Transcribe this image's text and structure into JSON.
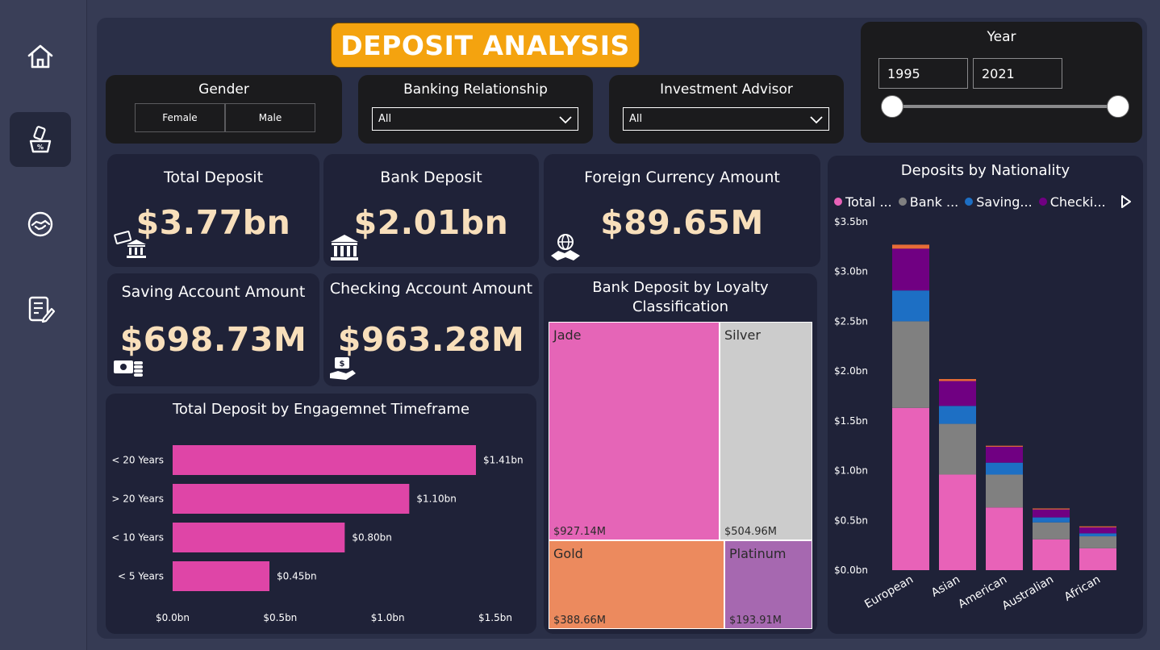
{
  "title": "DEPOSIT ANALYSIS",
  "sidebar": {
    "items": [
      {
        "name": "home",
        "icon": "home-icon"
      },
      {
        "name": "deposit",
        "icon": "deposit-icon",
        "active": true
      },
      {
        "name": "loan",
        "icon": "handshake-icon"
      },
      {
        "name": "report",
        "icon": "report-edit-icon"
      }
    ]
  },
  "slicers": {
    "gender": {
      "title": "Gender",
      "options": [
        "Female",
        "Male"
      ]
    },
    "banking_relationship": {
      "title": "Banking Relationship",
      "selected": "All"
    },
    "investment_advisor": {
      "title": "Investment Advisor",
      "selected": "All"
    },
    "year": {
      "title": "Year",
      "start": "1995",
      "end": "2021"
    }
  },
  "cards": {
    "total_deposit": {
      "title": "Total Deposit",
      "value": "$3.77bn"
    },
    "bank_deposit": {
      "title": "Bank Deposit",
      "value": "$2.01bn"
    },
    "foreign_currency": {
      "title": "Foreign Currency Amount",
      "value": "$89.65M"
    },
    "saving_account": {
      "title": "Saving Account Amount",
      "value": "$698.73M"
    },
    "checking_account": {
      "title": "Checking Account Amount",
      "value": "$963.28M"
    }
  },
  "colors": {
    "accent": "#f4a30f",
    "value_text": "#f8dfbb",
    "bar_pink": "#df45a7",
    "total": "#e862b8",
    "bank": "#808080",
    "saving": "#1d6fc4",
    "checking": "#700082",
    "foreign": "#e66c37",
    "jade": "#e565b7",
    "silver": "#cccccc",
    "gold": "#ec8a5e",
    "platinum": "#a668b0"
  },
  "chart_data": [
    {
      "id": "engagement",
      "type": "bar",
      "orientation": "horizontal",
      "title": "Total Deposit by Engagemnet Timeframe",
      "categories": [
        "< 20 Years",
        "> 20 Years",
        "< 10 Years",
        "< 5 Years"
      ],
      "values": [
        1.41,
        1.1,
        0.8,
        0.45
      ],
      "value_labels": [
        "$1.41bn",
        "$1.10bn",
        "$0.80bn",
        "$0.45bn"
      ],
      "xlim": [
        0,
        1.5
      ],
      "x_ticks": [
        0,
        0.5,
        1.0,
        1.5
      ],
      "x_tick_labels": [
        "$0.0bn",
        "$0.5bn",
        "$1.0bn",
        "$1.5bn"
      ]
    },
    {
      "id": "loyalty",
      "type": "treemap",
      "title": "Bank Deposit by Loyalty Classification",
      "items": [
        {
          "label": "Jade",
          "value": 927.14,
          "value_label": "$927.14M"
        },
        {
          "label": "Silver",
          "value": 504.96,
          "value_label": "$504.96M"
        },
        {
          "label": "Gold",
          "value": 388.66,
          "value_label": "$388.66M"
        },
        {
          "label": "Platinum",
          "value": 193.91,
          "value_label": "$193.91M"
        }
      ]
    },
    {
      "id": "nationality",
      "type": "bar",
      "stacked": true,
      "title": "Deposits by Nationality",
      "legend": [
        "Total ...",
        "Bank ...",
        "Saving...",
        "Checki..."
      ],
      "legend_position": "top-left",
      "categories": [
        "European",
        "Asian",
        "American",
        "Australian",
        "African"
      ],
      "series": [
        {
          "name": "Total Deposit",
          "values": [
            1.63,
            0.96,
            0.63,
            0.31,
            0.22
          ]
        },
        {
          "name": "Bank Deposit",
          "values": [
            0.87,
            0.51,
            0.33,
            0.17,
            0.12
          ]
        },
        {
          "name": "Saving Account",
          "values": [
            0.31,
            0.18,
            0.12,
            0.05,
            0.03
          ]
        },
        {
          "name": "Checking Account",
          "values": [
            0.42,
            0.25,
            0.16,
            0.08,
            0.06
          ]
        },
        {
          "name": "Foreign Currency",
          "values": [
            0.04,
            0.02,
            0.01,
            0.01,
            0.01
          ]
        }
      ],
      "ylim": [
        0,
        3.5
      ],
      "y_ticks": [
        0,
        0.5,
        1.0,
        1.5,
        2.0,
        2.5,
        3.0,
        3.5
      ],
      "y_tick_labels": [
        "$0.0bn",
        "$0.5bn",
        "$1.0bn",
        "$1.5bn",
        "$2.0bn",
        "$2.5bn",
        "$3.0bn",
        "$3.5bn"
      ]
    }
  ]
}
